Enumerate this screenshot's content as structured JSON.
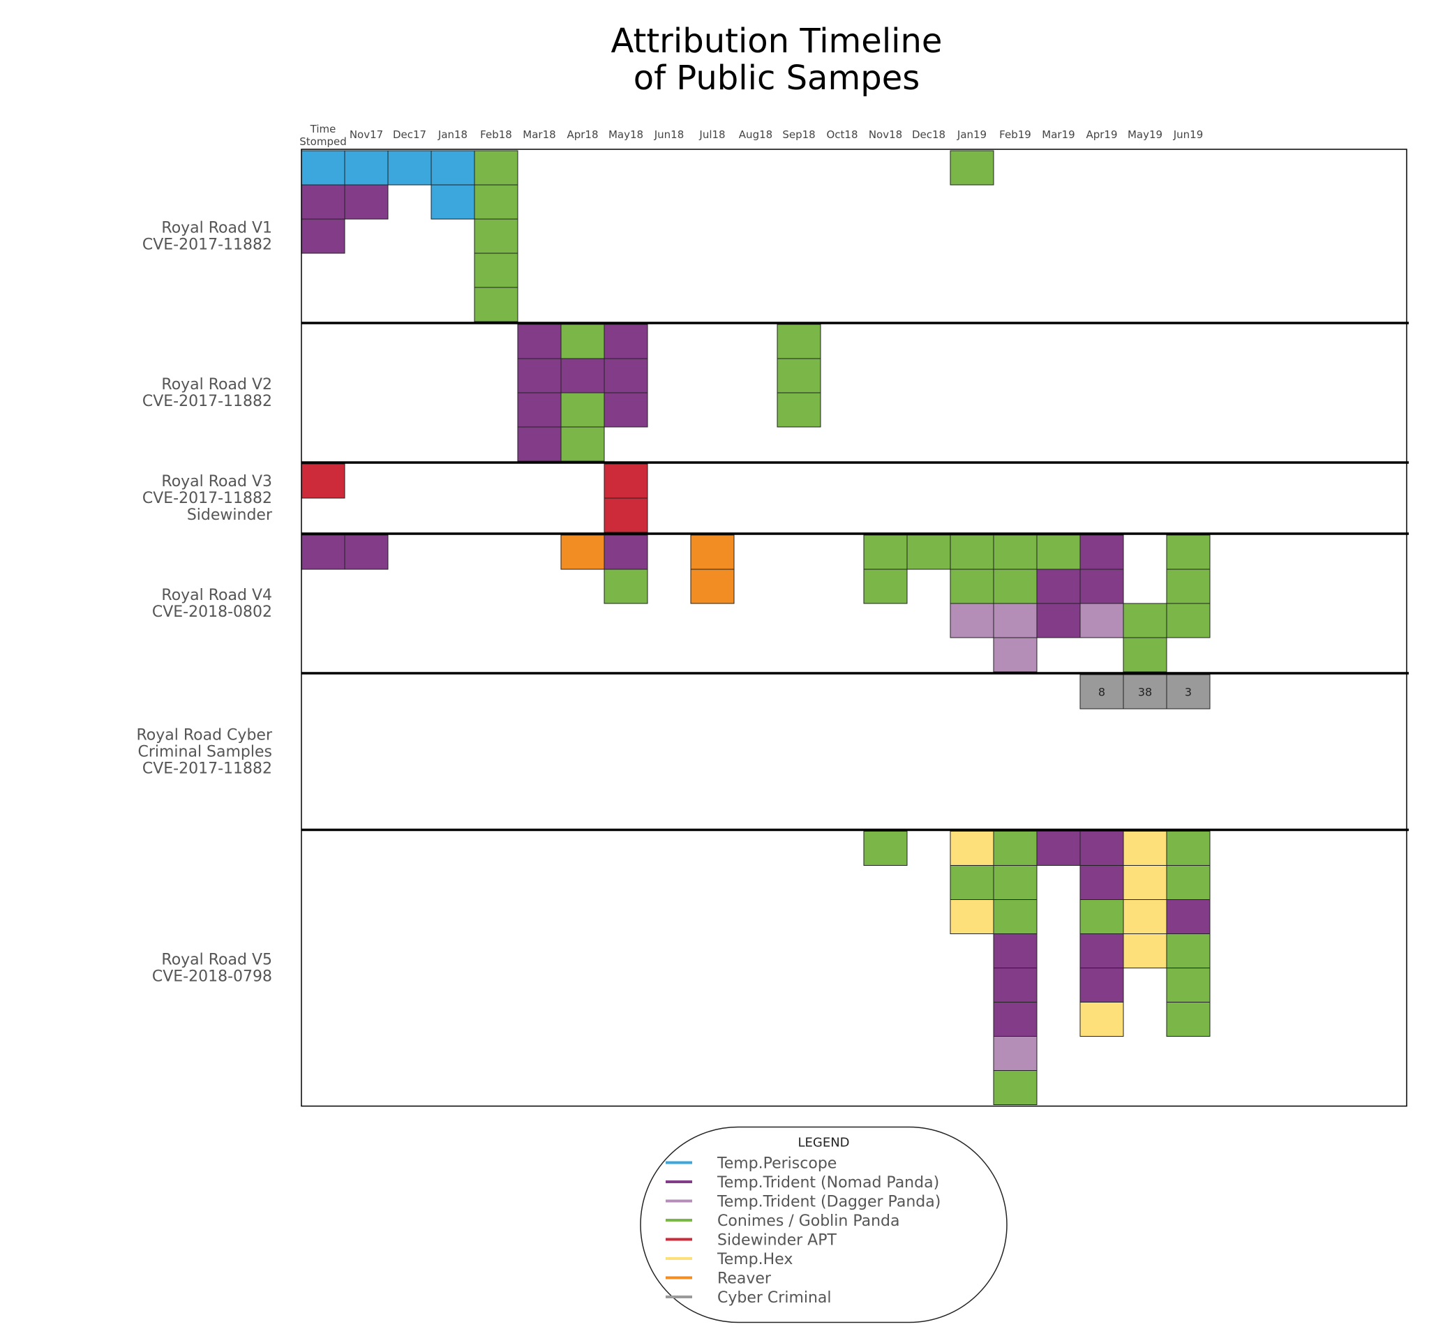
{
  "chart_data": {
    "type": "heatmap",
    "title": [
      "Attribution Timeline",
      "of Public Sampes"
    ],
    "columns": [
      "Time Stomped",
      "Nov17",
      "Dec17",
      "Jan18",
      "Feb18",
      "Mar18",
      "Apr18",
      "May18",
      "Jun18",
      "Jul18",
      "Aug18",
      "Sep18",
      "Oct18",
      "Nov18",
      "Dec18",
      "Jan19",
      "Feb19",
      "Mar19",
      "Apr19",
      "May19",
      "Jun19"
    ],
    "time_stomped_label": [
      "Time",
      "Stomped"
    ],
    "legend": {
      "title": "LEGEND",
      "entries": [
        {
          "key": "periscope",
          "label": "Temp.Periscope",
          "color": "#3ba7dc"
        },
        {
          "key": "nomad",
          "label": "Temp.Trident (Nomad Panda)",
          "color": "#833d88"
        },
        {
          "key": "dagger",
          "label": "Temp.Trident (Dagger Panda)",
          "color": "#b48eb6"
        },
        {
          "key": "goblin",
          "label": "Conimes / Goblin Panda",
          "color": "#7ab648"
        },
        {
          "key": "sidewinder",
          "label": "Sidewinder APT",
          "color": "#cd2b3a"
        },
        {
          "key": "hex",
          "label": "Temp.Hex",
          "color": "#fde07a"
        },
        {
          "key": "reaver",
          "label": "Reaver",
          "color": "#f28d23"
        },
        {
          "key": "criminal",
          "label": "Cyber Criminal",
          "color": "#9a9a9a"
        }
      ]
    },
    "rows": [
      {
        "label": [
          "Royal Road V1",
          "CVE-2017-11882"
        ],
        "height": 5,
        "cells": [
          {
            "col": 0,
            "attribution": [
              "periscope",
              "nomad",
              "nomad"
            ]
          },
          {
            "col": 1,
            "attribution": [
              "periscope",
              "nomad"
            ]
          },
          {
            "col": 2,
            "attribution": [
              "periscope"
            ]
          },
          {
            "col": 3,
            "attribution": [
              "periscope",
              "periscope"
            ]
          },
          {
            "col": 4,
            "attribution": [
              "goblin",
              "goblin",
              "goblin",
              "goblin",
              "goblin"
            ]
          },
          {
            "col": 15,
            "attribution": [
              "goblin"
            ]
          }
        ]
      },
      {
        "label": [
          "Royal Road V2",
          "CVE-2017-11882"
        ],
        "height": 4,
        "cells": [
          {
            "col": 5,
            "attribution": [
              "nomad",
              "nomad",
              "nomad",
              "nomad"
            ]
          },
          {
            "col": 6,
            "attribution": [
              "goblin",
              "nomad",
              "goblin",
              "goblin"
            ]
          },
          {
            "col": 7,
            "attribution": [
              "nomad",
              "nomad",
              "nomad"
            ]
          },
          {
            "col": 11,
            "attribution": [
              "goblin",
              "goblin",
              "goblin"
            ]
          }
        ]
      },
      {
        "label": [
          "Royal Road V3",
          "CVE-2017-11882",
          "Sidewinder"
        ],
        "height": 2,
        "cells": [
          {
            "col": 0,
            "attribution": [
              "sidewinder"
            ]
          },
          {
            "col": 7,
            "attribution": [
              "sidewinder",
              "sidewinder"
            ]
          }
        ]
      },
      {
        "label": [
          "Royal Road V4",
          "CVE-2018-0802"
        ],
        "height": 4,
        "cells": [
          {
            "col": 0,
            "attribution": [
              "nomad"
            ]
          },
          {
            "col": 1,
            "attribution": [
              "nomad"
            ]
          },
          {
            "col": 6,
            "attribution": [
              "reaver"
            ]
          },
          {
            "col": 7,
            "attribution": [
              "nomad",
              "goblin"
            ]
          },
          {
            "col": 9,
            "attribution": [
              "reaver",
              "reaver"
            ]
          },
          {
            "col": 13,
            "attribution": [
              "goblin",
              "goblin"
            ]
          },
          {
            "col": 14,
            "attribution": [
              "goblin"
            ]
          },
          {
            "col": 15,
            "attribution": [
              "goblin",
              "goblin",
              "dagger"
            ]
          },
          {
            "col": 16,
            "attribution": [
              "goblin",
              "goblin",
              "dagger",
              "dagger"
            ]
          },
          {
            "col": 17,
            "attribution": [
              "goblin",
              "nomad",
              "nomad"
            ]
          },
          {
            "col": 18,
            "attribution": [
              "nomad",
              "nomad",
              "dagger"
            ]
          },
          {
            "col": 19,
            "attribution": [
              "empty",
              "empty",
              "goblin",
              "goblin"
            ]
          },
          {
            "col": 20,
            "attribution": [
              "goblin",
              "goblin",
              "goblin"
            ]
          }
        ]
      },
      {
        "label": [
          "Royal Road Cyber",
          "Criminal Samples",
          "CVE-2017-11882"
        ],
        "height": 4.5,
        "cells": [
          {
            "col": 18,
            "attribution": [
              "criminal"
            ],
            "count": "8"
          },
          {
            "col": 19,
            "attribution": [
              "criminal"
            ],
            "count": "38"
          },
          {
            "col": 20,
            "attribution": [
              "criminal"
            ],
            "count": "3"
          }
        ]
      },
      {
        "label": [
          "Royal Road V5",
          "CVE-2018-0798"
        ],
        "height": 8,
        "cells": [
          {
            "col": 13,
            "attribution": [
              "goblin"
            ]
          },
          {
            "col": 15,
            "attribution": [
              "hex",
              "goblin",
              "hex"
            ]
          },
          {
            "col": 16,
            "attribution": [
              "goblin",
              "goblin",
              "goblin",
              "nomad",
              "nomad",
              "nomad",
              "dagger",
              "goblin"
            ]
          },
          {
            "col": 17,
            "attribution": [
              "nomad"
            ]
          },
          {
            "col": 18,
            "attribution": [
              "nomad",
              "nomad",
              "goblin",
              "nomad",
              "nomad",
              "hex"
            ]
          },
          {
            "col": 19,
            "attribution": [
              "hex",
              "hex",
              "hex",
              "hex"
            ]
          },
          {
            "col": 20,
            "attribution": [
              "goblin",
              "goblin",
              "nomad",
              "goblin",
              "goblin",
              "goblin"
            ]
          }
        ]
      }
    ]
  }
}
